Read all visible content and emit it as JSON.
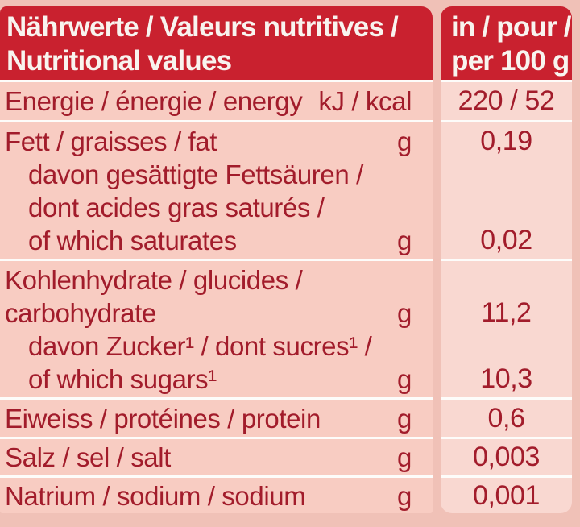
{
  "header": {
    "left": "Nährwerte / Valeurs nutritives /\nNutritional values",
    "right": "in / pour /\nper 100 g"
  },
  "rows": [
    {
      "key": "energy",
      "lines": [
        {
          "text": "Energie / énergie / energy",
          "unit": "kJ / kcal",
          "value": "220 / 52"
        }
      ]
    },
    {
      "key": "fat",
      "lines": [
        {
          "text": "Fett / graisses / fat",
          "unit": "g",
          "value": "0,19"
        },
        {
          "text": "davon gesättigte Fettsäuren /",
          "indent": true
        },
        {
          "text": "dont acides gras saturés /",
          "indent": true
        },
        {
          "text": "of which saturates",
          "indent": true,
          "unit": "g",
          "value": "0,02"
        }
      ]
    },
    {
      "key": "carbohydrate",
      "lines": [
        {
          "text": "Kohlenhydrate / glucides /"
        },
        {
          "text": "carbohydrate",
          "unit": "g",
          "value": "11,2"
        },
        {
          "text": "davon Zucker¹ / dont sucres¹ /",
          "indent": true
        },
        {
          "text": "of which sugars¹",
          "indent": true,
          "unit": "g",
          "value": "10,3"
        }
      ]
    },
    {
      "key": "protein",
      "lines": [
        {
          "text": "Eiweiss / protéines / protein",
          "unit": "g",
          "value": "0,6"
        }
      ]
    },
    {
      "key": "salt",
      "lines": [
        {
          "text": "Salz / sel / salt",
          "unit": "g",
          "value": "0,003"
        }
      ]
    },
    {
      "key": "sodium",
      "lines": [
        {
          "text": "Natrium / sodium / sodium",
          "unit": "g",
          "value": "0,001"
        }
      ]
    }
  ],
  "colors": {
    "header_bg": "#c9212f",
    "header_text": "#f8f4ef",
    "label_cell_bg": "#f8ccc2",
    "value_cell_bg": "#f9d8d1",
    "page_bg": "#f0c1b7",
    "text_red": "#a21c2b",
    "separator": "#ffffff"
  }
}
